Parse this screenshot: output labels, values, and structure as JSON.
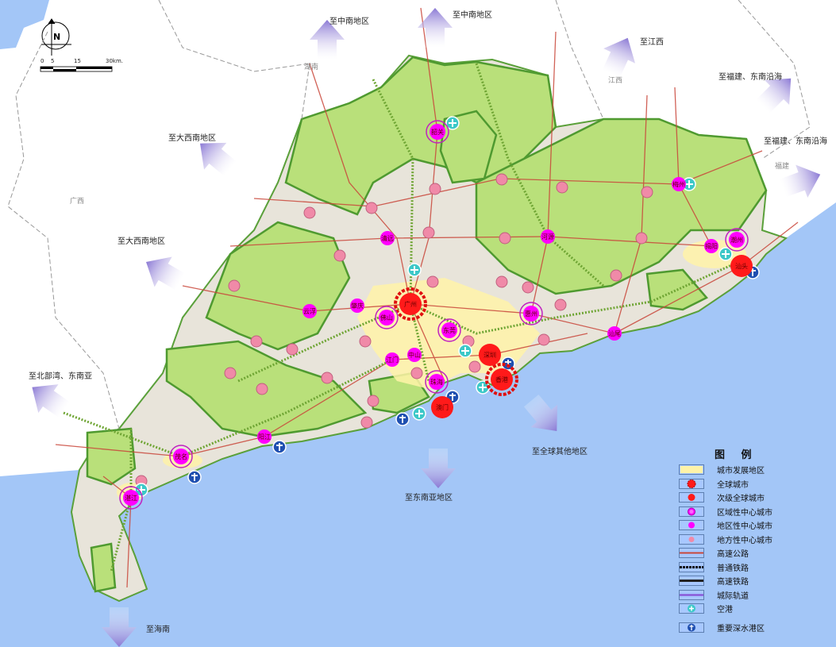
{
  "legend": {
    "title": "图 例",
    "items": [
      {
        "label": "城市发展地区",
        "symbol": "urban-area"
      },
      {
        "label": "全球城市",
        "symbol": "global-city"
      },
      {
        "label": "次级全球城市",
        "symbol": "sub-global-city"
      },
      {
        "label": "区域性中心城市",
        "symbol": "regional-center"
      },
      {
        "label": "地区性中心城市",
        "symbol": "district-center"
      },
      {
        "label": "地方性中心城市",
        "symbol": "local-center"
      },
      {
        "label": "高速公路",
        "symbol": "expressway"
      },
      {
        "label": "普通铁路",
        "symbol": "railway"
      },
      {
        "label": "高速铁路",
        "symbol": "high-speed-rail"
      },
      {
        "label": "城际轨道",
        "symbol": "intercity-rail"
      },
      {
        "label": "空港",
        "symbol": "airport"
      },
      {
        "label": "重要深水港区",
        "symbol": "deepwater-port"
      }
    ]
  },
  "scale_bar": {
    "ticks": [
      "0",
      "5",
      "15",
      "30km."
    ]
  },
  "compass": {
    "label": "N"
  },
  "directions": [
    "至中南地区",
    "至中南地区",
    "至江西",
    "至福建、东南沿海",
    "至福建、东南沿海",
    "至大西南地区",
    "至大西南地区",
    "至北部湾、东南亚",
    "至海南",
    "至东南亚地区",
    "至全球其他地区"
  ],
  "regions": [
    "湖南",
    "江西",
    "福建",
    "广西"
  ],
  "cities": [
    {
      "name": "广州",
      "level": "global"
    },
    {
      "name": "香港",
      "level": "global"
    },
    {
      "name": "深圳",
      "level": "sub-global"
    },
    {
      "name": "澳门",
      "level": "sub-global"
    },
    {
      "name": "汕头",
      "level": "sub-global"
    },
    {
      "name": "佛山",
      "level": "regional"
    },
    {
      "name": "东莞",
      "level": "regional"
    },
    {
      "name": "惠州",
      "level": "regional"
    },
    {
      "name": "珠海",
      "level": "regional"
    },
    {
      "name": "韶关",
      "level": "regional"
    },
    {
      "name": "潮州",
      "level": "regional"
    },
    {
      "name": "茂名",
      "level": "regional"
    },
    {
      "name": "湛江",
      "level": "regional"
    },
    {
      "name": "中山",
      "level": "district"
    },
    {
      "name": "江门",
      "level": "district"
    },
    {
      "name": "肇庆",
      "level": "district"
    },
    {
      "name": "清远",
      "level": "district"
    },
    {
      "name": "云浮",
      "level": "district"
    },
    {
      "name": "河源",
      "level": "district"
    },
    {
      "name": "梅州",
      "level": "district"
    },
    {
      "name": "揭阳",
      "level": "district"
    },
    {
      "name": "汕尾",
      "level": "district"
    },
    {
      "name": "阳江",
      "level": "district"
    }
  ],
  "colors": {
    "sea": "#a3c6f7",
    "land": "#e8e4da",
    "ecological": "#b9e07a",
    "urban": "#fff3a8",
    "global_city": "#ff1a1a",
    "regional_center": "#ff00ff",
    "local_center": "#f08aa8",
    "expressway": "#c9463a",
    "railway": "#6fa534",
    "arrow": "#8f7fd6"
  }
}
